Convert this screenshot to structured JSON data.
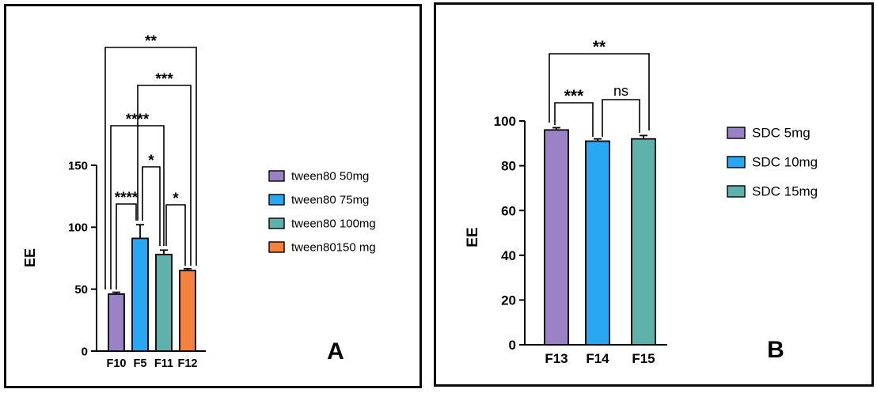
{
  "chart_data": [
    {
      "type": "bar",
      "panel_label": "A",
      "panel_label_color": "#e8122f",
      "ylabel": "EE",
      "xlabel": "",
      "ylim": [
        0,
        150
      ],
      "yticks": [
        0,
        50,
        100,
        150
      ],
      "grid": false,
      "legend_position": "right",
      "categories": [
        "F10",
        "F5",
        "F11",
        "F12"
      ],
      "values": [
        46,
        91,
        78,
        65
      ],
      "errors": [
        1.5,
        11,
        3.5,
        1.5
      ],
      "bar_colors": [
        "#9b82c7",
        "#2aa7f2",
        "#5fb1ac",
        "#f5813e"
      ],
      "legend": [
        {
          "label": "tween80 50mg",
          "color": "#9b82c7"
        },
        {
          "label": "tween80 75mg",
          "color": "#2aa7f2"
        },
        {
          "label": "tween80 100mg",
          "color": "#5fb1ac"
        },
        {
          "label": "tween80150 mg",
          "color": "#f5813e"
        }
      ],
      "significance": [
        {
          "between": [
            "F10",
            "F5"
          ],
          "label": "****"
        },
        {
          "between": [
            "F5",
            "F11"
          ],
          "label": "*"
        },
        {
          "between": [
            "F11",
            "F12"
          ],
          "label": "*"
        },
        {
          "between": [
            "F10",
            "F11"
          ],
          "label": "****"
        },
        {
          "between": [
            "F5",
            "F12"
          ],
          "label": "***"
        },
        {
          "between": [
            "F10",
            "F12"
          ],
          "label": "**"
        }
      ]
    },
    {
      "type": "bar",
      "panel_label": "B",
      "panel_label_color": "#e8122f",
      "ylabel": "EE",
      "xlabel": "",
      "ylim": [
        0,
        100
      ],
      "yticks": [
        0,
        20,
        40,
        60,
        80,
        100
      ],
      "grid": false,
      "legend_position": "right",
      "categories": [
        "F13",
        "F14",
        "F15"
      ],
      "values": [
        96,
        91,
        92
      ],
      "errors": [
        1,
        1,
        1.5
      ],
      "bar_colors": [
        "#9b82c7",
        "#2aa7f2",
        "#5fb1ac"
      ],
      "legend": [
        {
          "label": "SDC 5mg",
          "color": "#9b82c7"
        },
        {
          "label": "SDC 10mg",
          "color": "#2aa7f2"
        },
        {
          "label": "SDC 15mg",
          "color": "#5fb1ac"
        }
      ],
      "significance": [
        {
          "between": [
            "F13",
            "F14"
          ],
          "label": "***"
        },
        {
          "between": [
            "F14",
            "F15"
          ],
          "label": "ns"
        },
        {
          "between": [
            "F13",
            "F15"
          ],
          "label": "**"
        }
      ]
    }
  ]
}
